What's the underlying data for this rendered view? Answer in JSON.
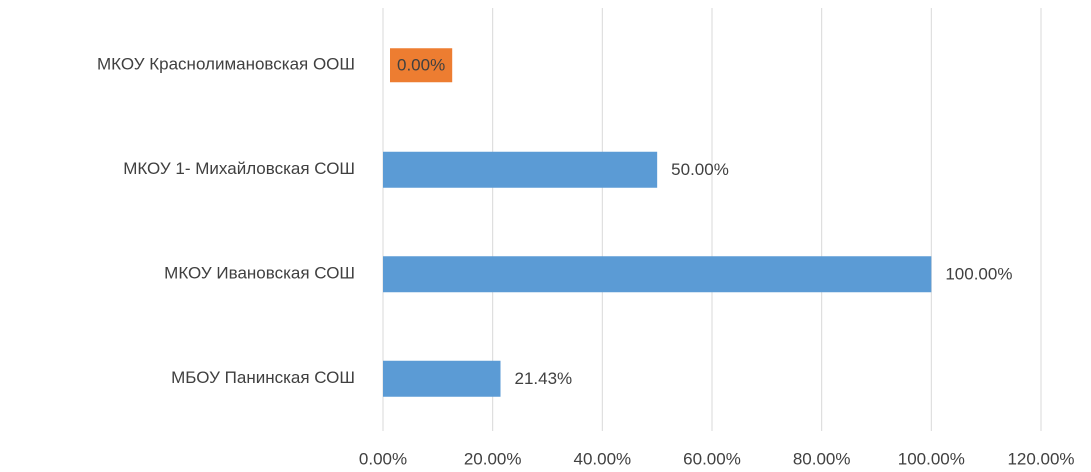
{
  "chart_data": {
    "type": "bar",
    "orientation": "horizontal",
    "categories": [
      "МКОУ Краснолимановская ООШ",
      "МКОУ 1- Михайловская СОШ",
      "МКОУ Ивановская СОШ",
      "МБОУ Панинская СОШ"
    ],
    "values": [
      0,
      50,
      100,
      21.43
    ],
    "value_labels": [
      "0.00%",
      "50.00%",
      "100.00%",
      "21.43%"
    ],
    "value_label_fills": [
      "#ed7d31",
      null,
      null,
      null
    ],
    "color": "#5b9bd5",
    "xlim": [
      0,
      120
    ],
    "xticks": [
      {
        "value": 0,
        "label": "0.00%"
      },
      {
        "value": 20,
        "label": "20.00%"
      },
      {
        "value": 40,
        "label": "40.00%"
      },
      {
        "value": 60,
        "label": "60.00%"
      },
      {
        "value": 80,
        "label": "80.00%"
      },
      {
        "value": 100,
        "label": "100.00%"
      },
      {
        "value": 120,
        "label": "120.00%"
      }
    ],
    "grid": true
  }
}
